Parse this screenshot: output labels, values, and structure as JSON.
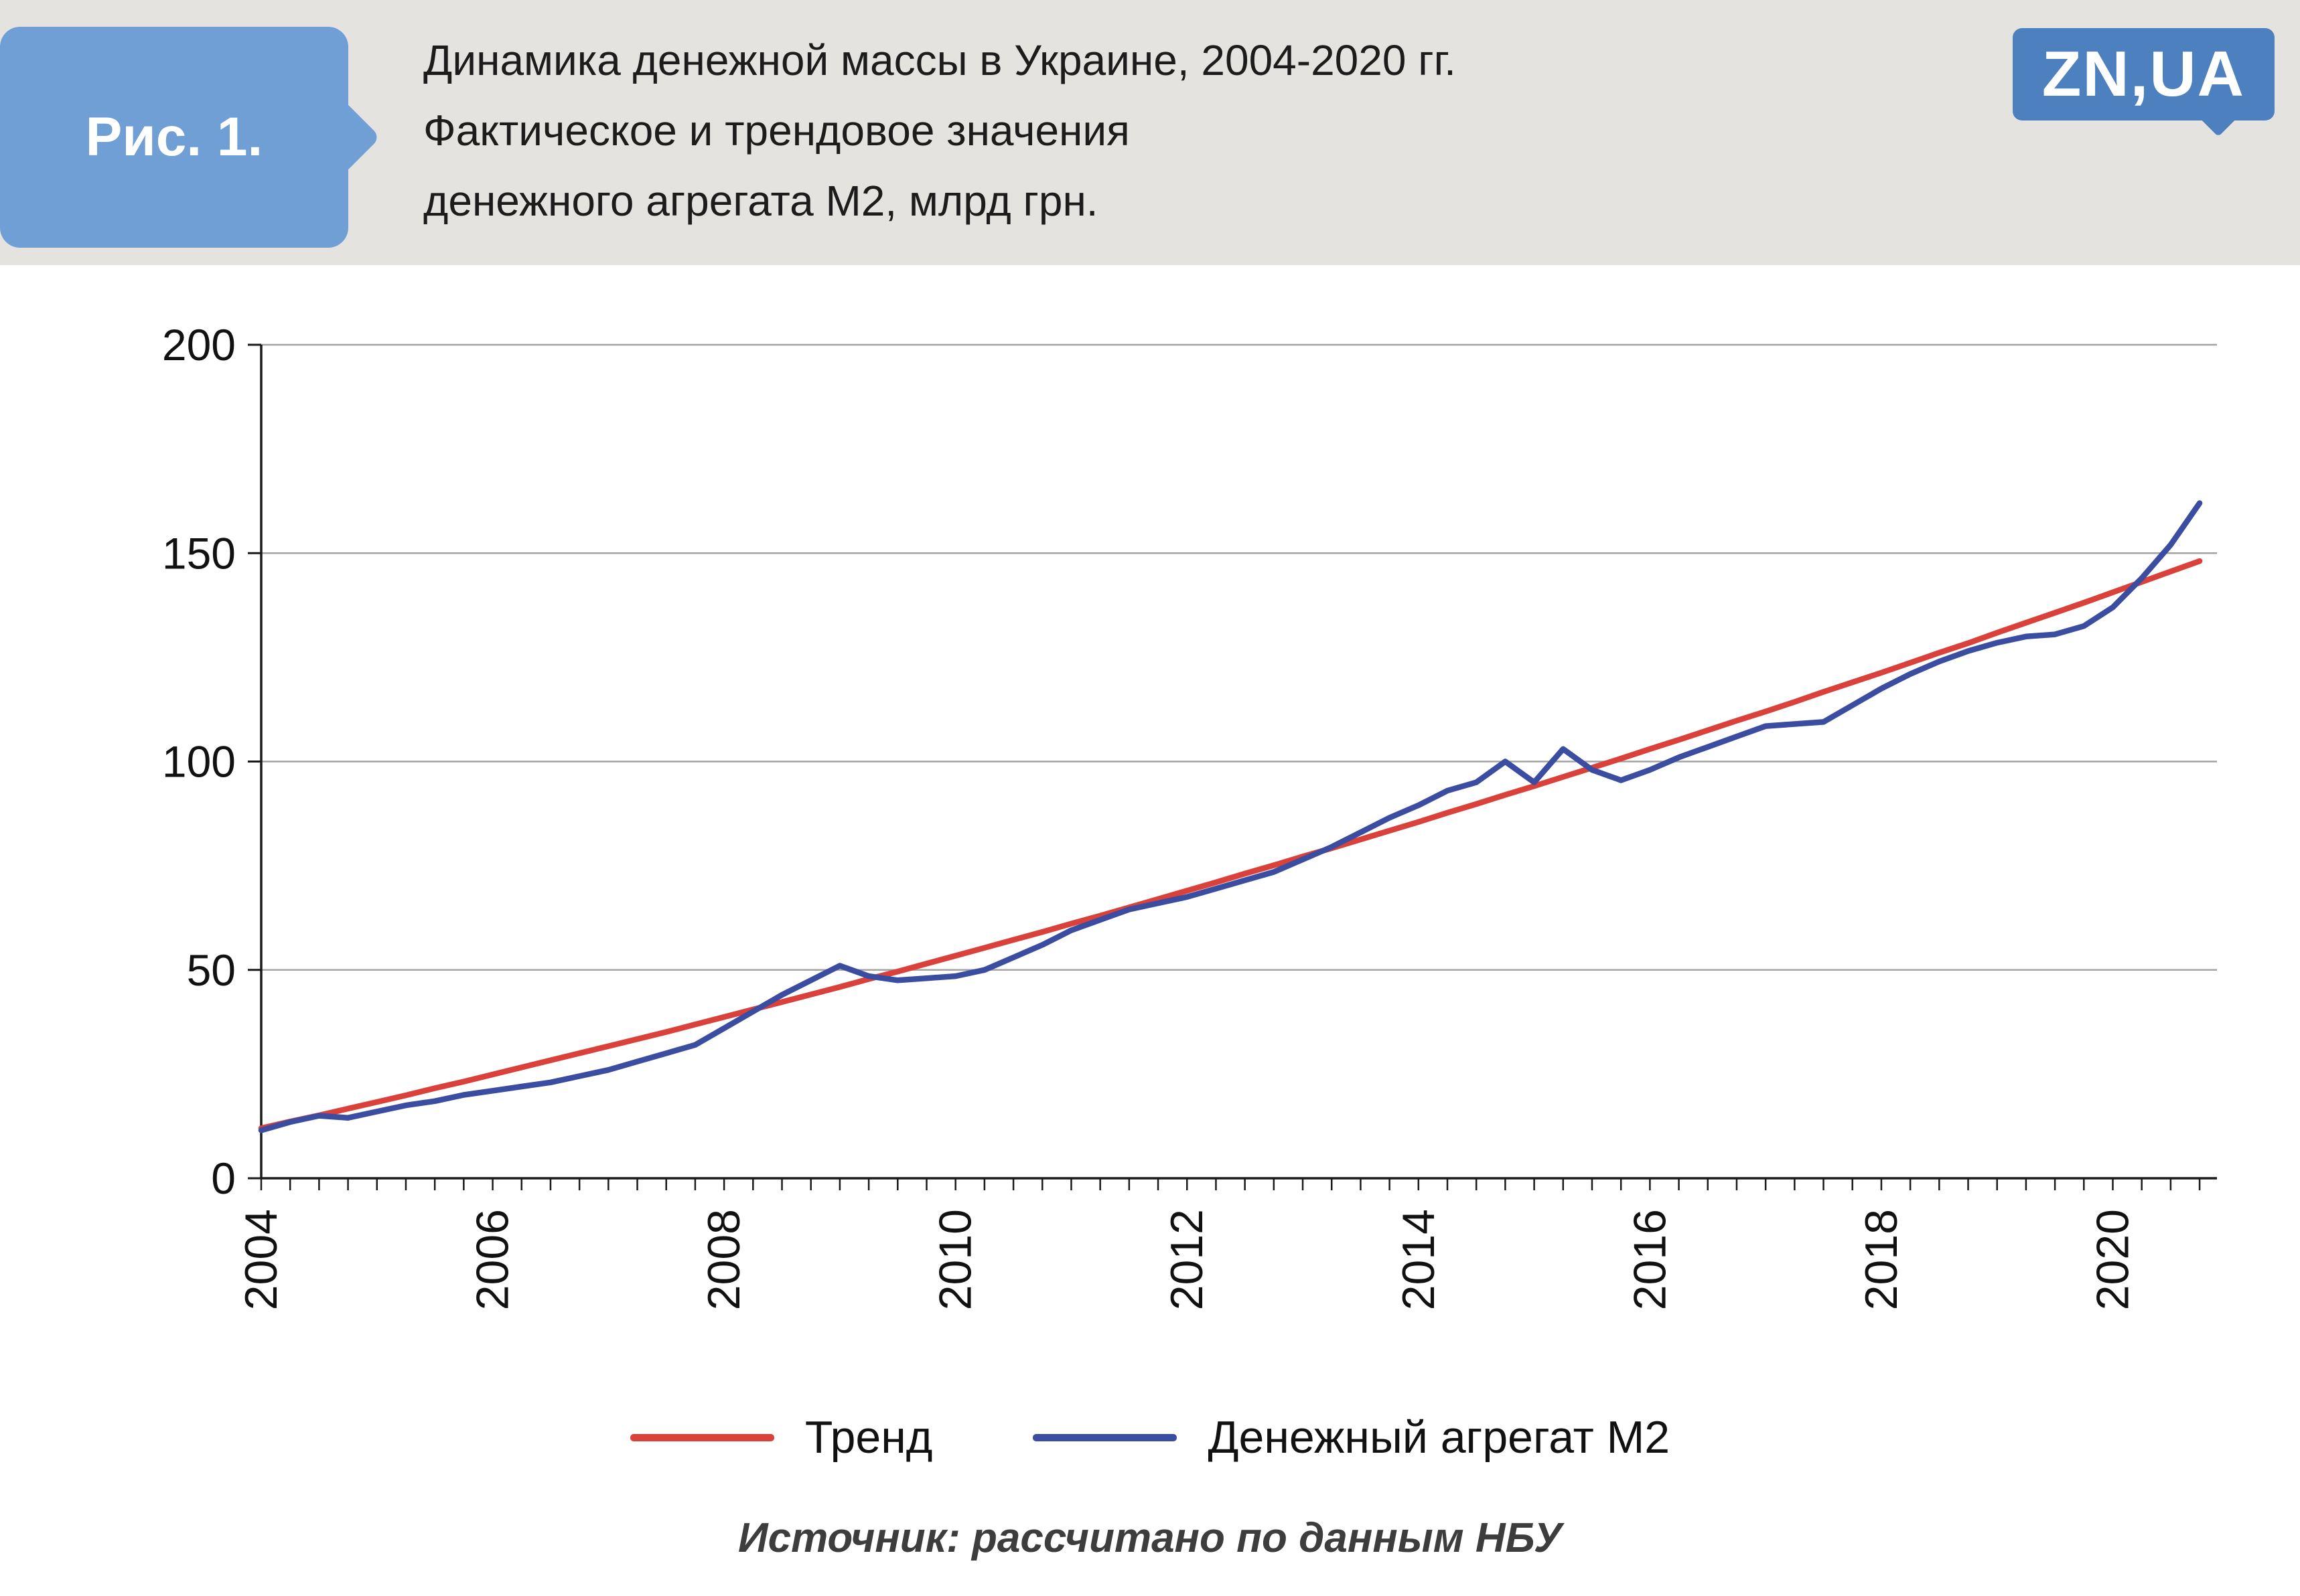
{
  "figure": {
    "tag": "Рис. 1.",
    "title_lines": [
      "Динамика денежной массы в Украине, 2004-2020 гг.",
      "Фактическое и трендовое значения",
      "денежного агрегата М2, млрд грн."
    ],
    "logo_text": "ZN,UA",
    "source": "Источник: рассчитано по данным НБУ"
  },
  "colors": {
    "trend_line": "#d9413a",
    "m2_line": "#3b4da1",
    "grid_line": "#a3a3a3",
    "axis": "#1a1a1a",
    "header_bg": "#e5e3e0",
    "tab_blue": "#6f9fd4",
    "logo_blue": "#4d80bf",
    "source_text": "#3d3d3d"
  },
  "chart_data": {
    "type": "line",
    "title": "Динамика денежной массы в Украине, 2004-2020 гг. Фактическое и трендовое значения денежного агрегата М2, млрд грн.",
    "unit": "млрд грн",
    "ylim": [
      0,
      200
    ],
    "y_ticks": [
      0,
      50,
      100,
      150,
      200
    ],
    "x_tick_labels": [
      2004,
      2006,
      2008,
      2010,
      2012,
      2014,
      2016,
      2018,
      2020
    ],
    "x_minor_tick_step": 0.25,
    "grid": "horizontal",
    "legend_position": "bottom",
    "x": [
      2004,
      2004.25,
      2004.5,
      2004.75,
      2005,
      2005.25,
      2005.5,
      2005.75,
      2006,
      2006.25,
      2006.5,
      2006.75,
      2007,
      2007.25,
      2007.5,
      2007.75,
      2008,
      2008.25,
      2008.5,
      2008.75,
      2009,
      2009.25,
      2009.5,
      2009.75,
      2010,
      2010.25,
      2010.5,
      2010.75,
      2011,
      2011.25,
      2011.5,
      2011.75,
      2012,
      2012.25,
      2012.5,
      2012.75,
      2013,
      2013.25,
      2013.5,
      2013.75,
      2014,
      2014.25,
      2014.5,
      2014.75,
      2015,
      2015.25,
      2015.5,
      2015.75,
      2016,
      2016.25,
      2016.5,
      2016.75,
      2017,
      2017.25,
      2017.5,
      2017.75,
      2018,
      2018.25,
      2018.5,
      2018.75,
      2019,
      2019.25,
      2019.5,
      2019.75,
      2020,
      2020.25,
      2020.5,
      2020.75
    ],
    "series": [
      {
        "name": "Тренд",
        "color": "#d9413a",
        "values": [
          12,
          13.6,
          15.1,
          16.7,
          18.3,
          19.9,
          21.6,
          23.2,
          24.9,
          26.6,
          28.3,
          30,
          31.7,
          33.4,
          35.1,
          36.9,
          38.7,
          40.5,
          42.3,
          44.1,
          45.9,
          47.8,
          49.6,
          51.5,
          53.4,
          55.3,
          57.2,
          59.1,
          61.1,
          63,
          65,
          67,
          69,
          71,
          73.1,
          75.1,
          77.2,
          79.2,
          81.3,
          83.4,
          85.5,
          87.7,
          89.8,
          92,
          94.1,
          96.3,
          98.5,
          100.7,
          103,
          105.2,
          107.5,
          109.8,
          112,
          114.3,
          116.7,
          119,
          121.3,
          123.7,
          126.1,
          128.4,
          130.9,
          133.3,
          135.7,
          138.1,
          140.6,
          143.1,
          145.6,
          148.1
        ]
      },
      {
        "name": "Денежный агрегат М2",
        "color": "#3b4da1",
        "values": [
          11.5,
          13.5,
          15,
          14.5,
          16,
          17.5,
          18.5,
          20,
          21,
          22,
          23,
          24.5,
          26,
          28,
          30,
          32,
          36,
          40,
          44,
          47.5,
          51,
          48.5,
          47.5,
          48,
          48.5,
          50,
          53,
          56,
          59.5,
          62,
          64.5,
          66,
          67.5,
          69.5,
          71.5,
          73.5,
          76.5,
          79.5,
          83,
          86.5,
          89.5,
          93,
          95,
          100,
          95,
          103,
          98,
          95.5,
          98,
          101,
          103.5,
          106,
          108.5,
          109,
          109.5,
          113.5,
          117.5,
          121,
          124,
          126.5,
          128.5,
          130,
          130.5,
          132.5,
          137,
          144,
          152,
          162
        ]
      }
    ]
  }
}
